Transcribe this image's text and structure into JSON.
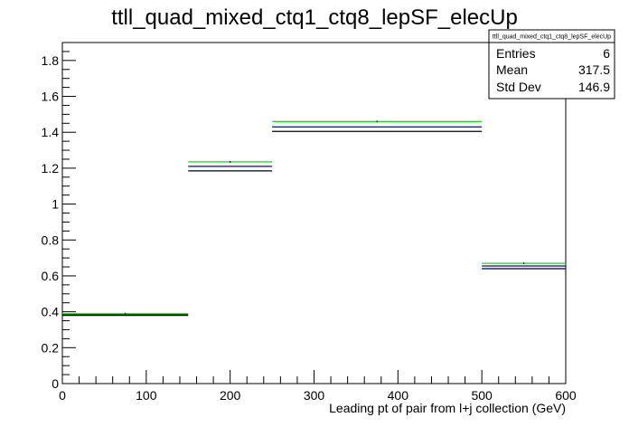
{
  "chart_data": {
    "type": "step",
    "title": "ttll_quad_mixed_ctq1_ctq8_lepSF_elecUp",
    "xlabel": "Leading pt of pair from l+j collection (GeV)",
    "ylabel": "",
    "xlim": [
      0,
      600
    ],
    "ylim": [
      0,
      1.9
    ],
    "x_ticks": [
      0,
      100,
      200,
      300,
      400,
      500,
      600
    ],
    "x_tick_labels": [
      "0",
      "100",
      "200",
      "300",
      "400",
      "500",
      "600"
    ],
    "y_ticks": [
      0,
      0.2,
      0.4,
      0.6,
      0.8,
      1,
      1.2,
      1.4,
      1.6,
      1.8
    ],
    "y_tick_labels": [
      "0",
      "0.2",
      "0.4",
      "0.6",
      "0.8",
      "1",
      "1.2",
      "1.4",
      "1.6",
      "1.8"
    ],
    "bin_edges": [
      0,
      150,
      250,
      500,
      600
    ],
    "series": [
      {
        "color": "#00cc00",
        "values": [
          0.389,
          1.235,
          1.46,
          0.67,
          0
        ]
      },
      {
        "color": "#0000cc",
        "values": [
          0.383,
          1.21,
          1.43,
          0.655,
          0
        ]
      },
      {
        "color": "#000000",
        "values": [
          0.38,
          1.185,
          1.405,
          0.64,
          0
        ]
      }
    ],
    "bin_edges_display": [
      0,
      150,
      250,
      500,
      600
    ],
    "stats": {
      "name": "ttll_quad_mixed_ctq1_ctq8_lepSF_elecUp",
      "rows": [
        {
          "label": "Entries",
          "value": "6"
        },
        {
          "label": "Mean",
          "value": "317.5"
        },
        {
          "label": "Std Dev",
          "value": "146.9"
        }
      ]
    },
    "grid": false,
    "legend": "none"
  }
}
